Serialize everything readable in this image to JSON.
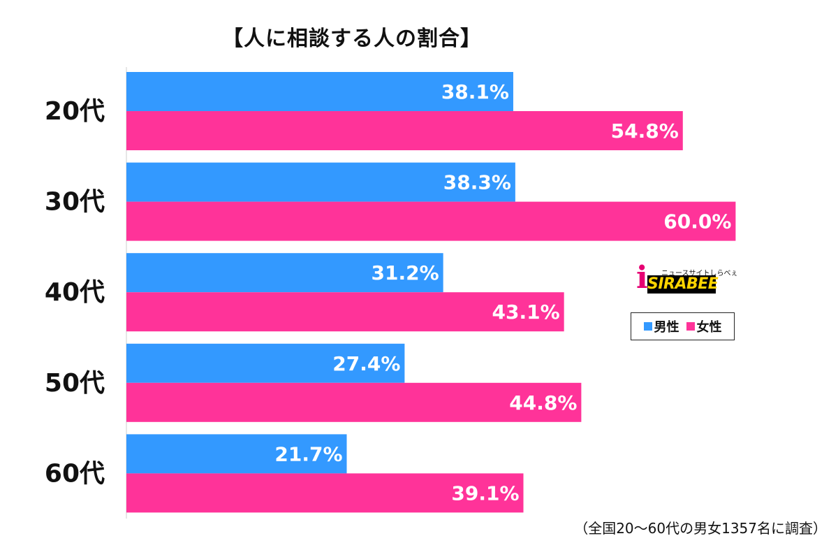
{
  "chart_data": {
    "type": "bar",
    "orientation": "horizontal",
    "title": "【人に相談する人の割合】",
    "categories": [
      "20代",
      "30代",
      "40代",
      "50代",
      "60代"
    ],
    "series": [
      {
        "name": "男性",
        "color": "#3399ff",
        "values": [
          38.1,
          38.3,
          31.2,
          27.4,
          21.7
        ],
        "labels": [
          "38.1%",
          "38.3%",
          "31.2%",
          "27.4%",
          "21.7%"
        ]
      },
      {
        "name": "女性",
        "color": "#ff3399",
        "values": [
          54.8,
          60.0,
          43.1,
          44.8,
          39.1
        ],
        "labels": [
          "54.8%",
          "60.0%",
          "43.1%",
          "44.8%",
          "39.1%"
        ]
      }
    ],
    "xlim": [
      0,
      100
    ],
    "unit": "%",
    "grid": false,
    "legend": "right"
  },
  "logo": {
    "mark": "i",
    "subtitle": "ニュースサイトしらべぇ",
    "name": "SIRABEE"
  },
  "note": "（全国20〜60代の男女1357名に調査）"
}
